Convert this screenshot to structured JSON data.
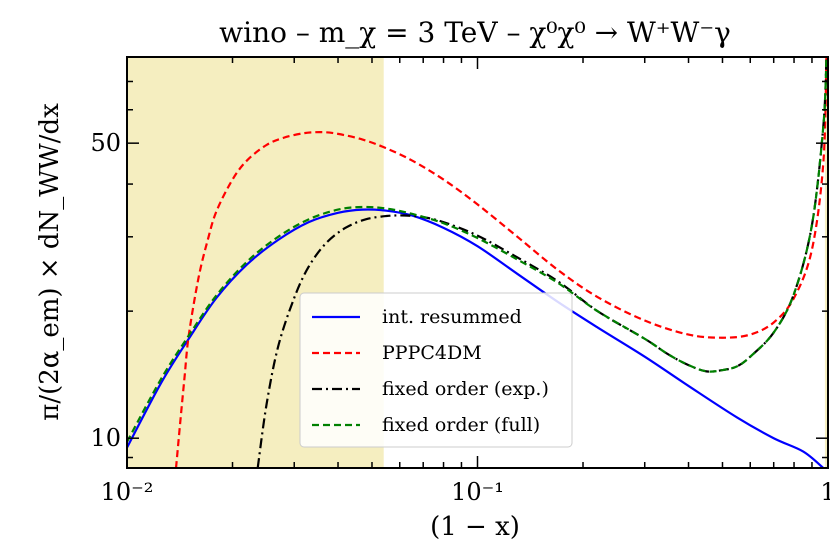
{
  "chart_data": {
    "type": "line",
    "title": "wino – m_χ = 3 TeV – χ⁰χ⁰ → W⁺W⁻γ",
    "xlabel": "(1 − x)",
    "ylabel": "π/(2α_em) × dN_WW/dx",
    "x_scale": "log",
    "y_scale": "log",
    "xlim": [
      0.01,
      1
    ],
    "ylim": [
      8.5,
      80
    ],
    "x_ticks": [
      {
        "value": 0.01,
        "label": "10⁻²"
      },
      {
        "value": 0.1,
        "label": "10⁻¹"
      },
      {
        "value": 1,
        "label": "1"
      }
    ],
    "y_ticks": [
      {
        "value": 10,
        "label": "10"
      },
      {
        "value": 50,
        "label": "50"
      }
    ],
    "shaded_regions": [
      {
        "x_from": 0.01,
        "x_to": 0.054,
        "color": "#f5eec0"
      },
      {
        "x_from": 0.98,
        "x_to": 1,
        "color": "#f5eec0"
      }
    ],
    "legend_position": "lower-center",
    "series": [
      {
        "name": "int. resummed",
        "color": "#0000ff",
        "dash": "solid",
        "x": [
          0.01,
          0.0125,
          0.015,
          0.018,
          0.022,
          0.027,
          0.033,
          0.04,
          0.047,
          0.055,
          0.065,
          0.08,
          0.1,
          0.13,
          0.17,
          0.22,
          0.3,
          0.4,
          0.55,
          0.7,
          0.85,
          0.97
        ],
        "y": [
          9.5,
          13.5,
          17.2,
          21.5,
          25.8,
          29.5,
          32.5,
          34.2,
          34.8,
          34.6,
          33.7,
          31.5,
          28.5,
          24.5,
          21.0,
          18.3,
          15.6,
          13.3,
          11.2,
          10.0,
          9.3,
          8.5
        ]
      },
      {
        "name": "PPPC4DM",
        "color": "#ff0000",
        "dash": "dashed",
        "x": [
          0.0138,
          0.0142,
          0.0146,
          0.015,
          0.016,
          0.017,
          0.018,
          0.02,
          0.022,
          0.025,
          0.028,
          0.032,
          0.036,
          0.04,
          0.047,
          0.055,
          0.065,
          0.08,
          0.1,
          0.13,
          0.17,
          0.22,
          0.3,
          0.4,
          0.5,
          0.6,
          0.7,
          0.8,
          0.9,
          0.97,
          0.99
        ],
        "y": [
          8.5,
          11.0,
          14.0,
          17.5,
          24.0,
          29.5,
          34.5,
          41.0,
          45.5,
          49.5,
          51.5,
          52.8,
          53.1,
          52.6,
          51.0,
          48.6,
          45.5,
          41.0,
          35.8,
          30.0,
          25.0,
          21.6,
          19.0,
          17.6,
          17.3,
          17.6,
          18.8,
          21.5,
          28.0,
          45.0,
          80.0
        ]
      },
      {
        "name": "fixed order (exp.)",
        "color": "#000000",
        "dash": "dashdot",
        "x": [
          0.0236,
          0.025,
          0.027,
          0.03,
          0.033,
          0.037,
          0.042,
          0.048,
          0.055,
          0.062,
          0.07,
          0.08,
          0.1,
          0.13,
          0.17,
          0.22,
          0.3,
          0.35,
          0.4,
          0.45,
          0.5,
          0.55,
          0.6,
          0.7,
          0.8,
          0.9,
          0.97,
          0.99
        ],
        "y": [
          8.5,
          12.0,
          16.5,
          21.5,
          25.5,
          29.0,
          31.5,
          33.0,
          33.6,
          33.7,
          33.4,
          32.5,
          30.2,
          26.8,
          23.5,
          20.0,
          17.2,
          15.8,
          14.9,
          14.4,
          14.5,
          14.8,
          15.6,
          17.8,
          22.0,
          32.0,
          55.0,
          80.0
        ]
      },
      {
        "name": "fixed order (full)",
        "color": "#008000",
        "dash": "dashed",
        "x": [
          0.01,
          0.0125,
          0.015,
          0.018,
          0.022,
          0.027,
          0.033,
          0.04,
          0.047,
          0.055,
          0.065,
          0.08,
          0.1,
          0.13,
          0.17,
          0.22,
          0.3,
          0.35,
          0.4,
          0.45,
          0.5,
          0.55,
          0.6,
          0.7,
          0.8,
          0.9,
          0.97,
          0.99
        ],
        "y": [
          9.8,
          13.8,
          17.5,
          21.8,
          26.2,
          30.0,
          33.0,
          34.8,
          35.3,
          35.0,
          34.0,
          32.3,
          29.8,
          26.5,
          23.3,
          20.0,
          17.2,
          15.8,
          14.9,
          14.4,
          14.5,
          14.8,
          15.6,
          17.8,
          22.0,
          32.0,
          55.0,
          80.0
        ]
      }
    ]
  }
}
